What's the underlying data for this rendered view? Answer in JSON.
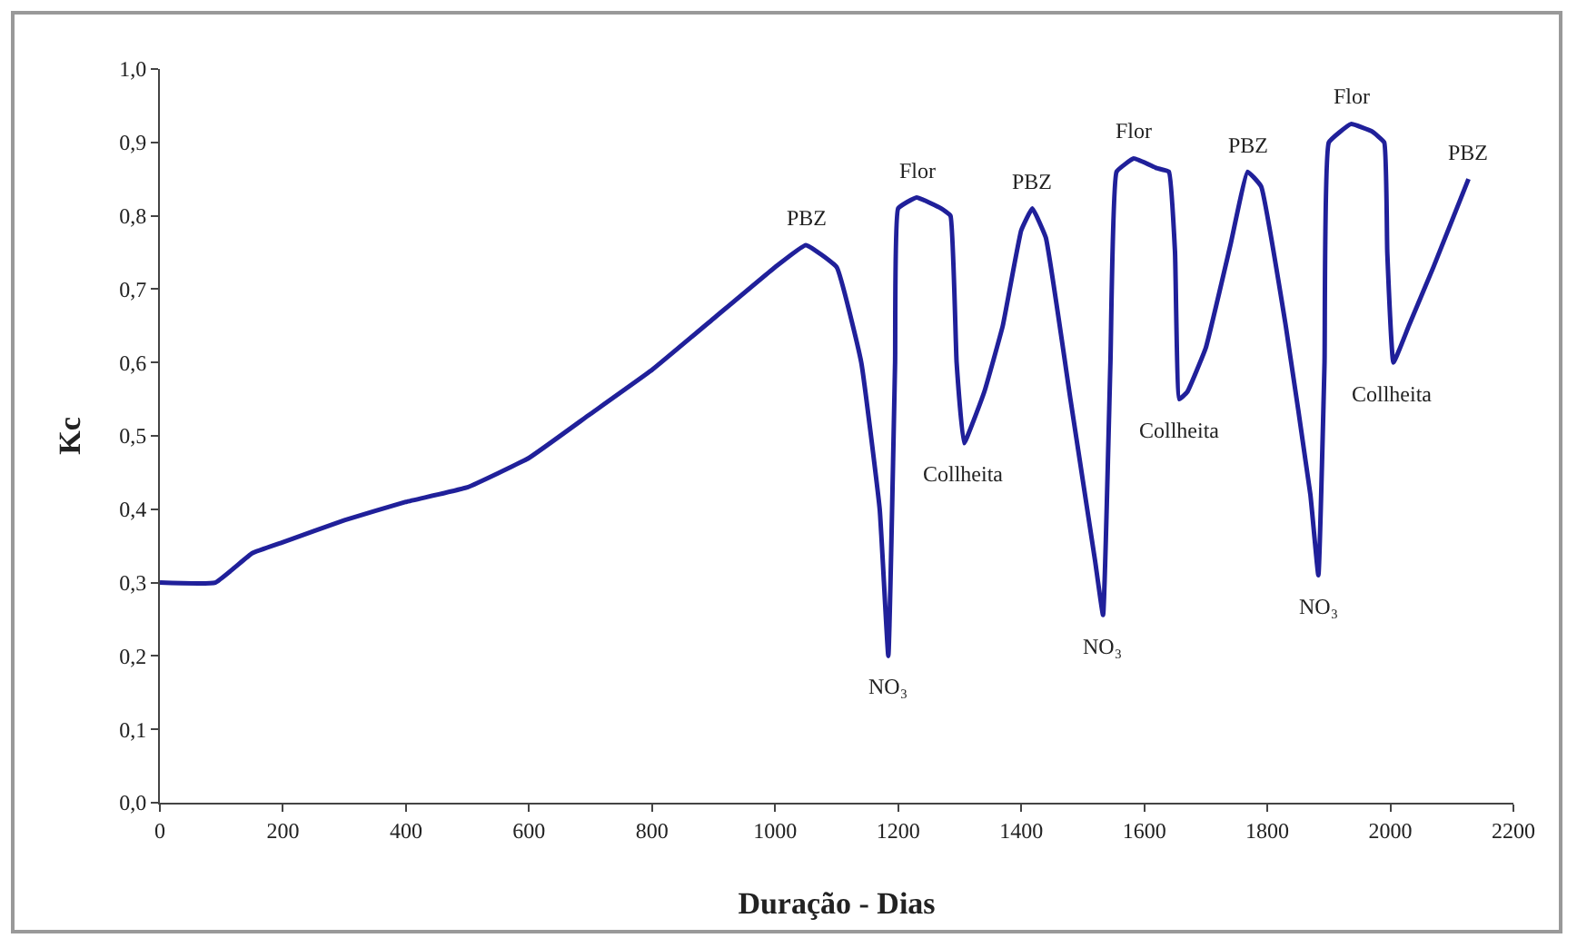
{
  "chart_data": {
    "type": "line",
    "xlabel": "Duração - Dias",
    "ylabel": "Kc",
    "xlim": [
      0,
      2200
    ],
    "xticks": [
      0,
      200,
      400,
      600,
      800,
      1000,
      1200,
      1400,
      1600,
      1800,
      2000,
      2200
    ],
    "ylim": [
      0,
      1
    ],
    "yticks": [
      {
        "value": 0,
        "label": "0,0"
      },
      {
        "value": 0.1,
        "label": "0,1"
      },
      {
        "value": 0.2,
        "label": "0,2"
      },
      {
        "value": 0.3,
        "label": "0,3"
      },
      {
        "value": 0.4,
        "label": "0,4"
      },
      {
        "value": 0.5,
        "label": "0,5"
      },
      {
        "value": 0.6,
        "label": "0,6"
      },
      {
        "value": 0.7,
        "label": "0,7"
      },
      {
        "value": 0.8,
        "label": "0,8"
      },
      {
        "value": 0.9,
        "label": "0,9"
      },
      {
        "value": 1,
        "label": "1,0"
      }
    ],
    "grid": false,
    "marker": "none",
    "line_style": "solid",
    "series": [
      {
        "color": "#20209a",
        "x": [
          0,
          90,
          150,
          200,
          300,
          400,
          500,
          600,
          700,
          800,
          900,
          1000,
          1050,
          1100,
          1140,
          1170,
          1184,
          1195,
          1200,
          1230,
          1270,
          1285,
          1295,
          1307,
          1340,
          1370,
          1400,
          1418,
          1440,
          1480,
          1520,
          1533,
          1545,
          1555,
          1583,
          1620,
          1640,
          1650,
          1657,
          1670,
          1700,
          1740,
          1768,
          1790,
          1830,
          1870,
          1883,
          1893,
          1900,
          1936,
          1970,
          1990,
          1995,
          2005,
          2030,
          2070,
          2127
        ],
        "values": [
          0.3,
          0.3,
          0.34,
          0.355,
          0.385,
          0.41,
          0.43,
          0.47,
          0.53,
          0.59,
          0.66,
          0.73,
          0.76,
          0.73,
          0.6,
          0.4,
          0.2,
          0.6,
          0.81,
          0.825,
          0.81,
          0.8,
          0.6,
          0.49,
          0.56,
          0.65,
          0.78,
          0.81,
          0.77,
          0.55,
          0.33,
          0.256,
          0.6,
          0.86,
          0.878,
          0.865,
          0.86,
          0.75,
          0.55,
          0.56,
          0.62,
          0.76,
          0.86,
          0.84,
          0.65,
          0.42,
          0.31,
          0.6,
          0.9,
          0.925,
          0.915,
          0.9,
          0.75,
          0.6,
          0.65,
          0.73,
          0.85
        ]
      }
    ],
    "annotations": [
      {
        "text": "PBZ",
        "x": 1050,
        "y": 0.76
      },
      {
        "text": "NO₃",
        "x": 1184,
        "y": 0.2
      },
      {
        "text": "Flor",
        "x": 1230,
        "y": 0.825
      },
      {
        "text": "Collheita",
        "x": 1307,
        "y": 0.49
      },
      {
        "text": "PBZ",
        "x": 1418,
        "y": 0.81
      },
      {
        "text": "NO₃",
        "x": 1533,
        "y": 0.256
      },
      {
        "text": "Flor",
        "x": 1583,
        "y": 0.878
      },
      {
        "text": "Collheita",
        "x": 1657,
        "y": 0.55
      },
      {
        "text": "PBZ",
        "x": 1768,
        "y": 0.86
      },
      {
        "text": "NO₃",
        "x": 1883,
        "y": 0.31
      },
      {
        "text": "Flor",
        "x": 1936,
        "y": 0.925
      },
      {
        "text": "Collheita",
        "x": 2005,
        "y": 0.6
      },
      {
        "text": "PBZ",
        "x": 2127,
        "y": 0.85
      }
    ]
  }
}
